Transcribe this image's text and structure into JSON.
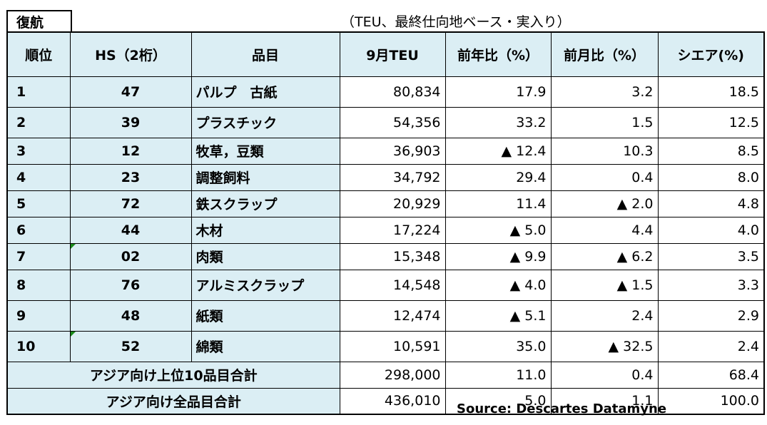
{
  "section_label": "復航",
  "unit_note": "（TEU、最終仕向地ベース・実入り）",
  "headers": [
    "順位",
    "HS（2桁）",
    "品目",
    "9月TEU",
    "前年比（%）",
    "前月比（%）",
    "シエア(%)"
  ],
  "rows": [
    {
      "rank": "1",
      "hs": "47",
      "item": "パルプ　古紙",
      "teu": "80,834",
      "yoy": "17.9",
      "mom": "3.2",
      "share": "18.5",
      "tick": false
    },
    {
      "rank": "2",
      "hs": "39",
      "item": "プラスチック",
      "teu": "54,356",
      "yoy": "33.2",
      "mom": "1.5",
      "share": "12.5",
      "tick": false
    },
    {
      "rank": "3",
      "hs": "12",
      "item": "牧草，豆類",
      "teu": "36,903",
      "yoy": "▲ 12.4",
      "mom": "10.3",
      "share": "8.5",
      "tick": false
    },
    {
      "rank": "4",
      "hs": "23",
      "item": "調整飼料",
      "teu": "34,792",
      "yoy": "29.4",
      "mom": "0.4",
      "share": "8.0",
      "tick": false
    },
    {
      "rank": "5",
      "hs": "72",
      "item": "鉄スクラップ",
      "teu": "20,929",
      "yoy": "11.4",
      "mom": "▲ 2.0",
      "share": "4.8",
      "tick": false
    },
    {
      "rank": "6",
      "hs": "44",
      "item": "木材",
      "teu": "17,224",
      "yoy": "▲ 5.0",
      "mom": "4.4",
      "share": "4.0",
      "tick": false
    },
    {
      "rank": "7",
      "hs": "02",
      "item": "肉類",
      "teu": "15,348",
      "yoy": "▲ 9.9",
      "mom": "▲ 6.2",
      "share": "3.5",
      "tick": true
    },
    {
      "rank": "8",
      "hs": "76",
      "item": "アルミスクラップ",
      "teu": "14,548",
      "yoy": "▲ 4.0",
      "mom": "▲ 1.5",
      "share": "3.3",
      "tick": false
    },
    {
      "rank": "9",
      "hs": "48",
      "item": "紙類",
      "teu": "12,474",
      "yoy": "▲ 5.1",
      "mom": "2.4",
      "share": "2.9",
      "tick": false
    },
    {
      "rank": "10",
      "hs": "52",
      "item": "綿類",
      "teu": "10,591",
      "yoy": "35.0",
      "mom": "▲ 32.5",
      "share": "2.4",
      "tick": true
    }
  ],
  "totals": [
    {
      "label": "アジア向け上位10品目合計",
      "teu": "298,000",
      "yoy": "11.0",
      "mom": "0.4",
      "share": "68.4"
    },
    {
      "label": "アジア向け全品目合計",
      "teu": "436,010",
      "yoy": "5.0",
      "mom": "1.1",
      "share": "100.0"
    }
  ],
  "source": "Source: Descartes Datamyne",
  "colors": {
    "header_bg": "#dbeef4",
    "tick_green": "#1a8a1a"
  }
}
